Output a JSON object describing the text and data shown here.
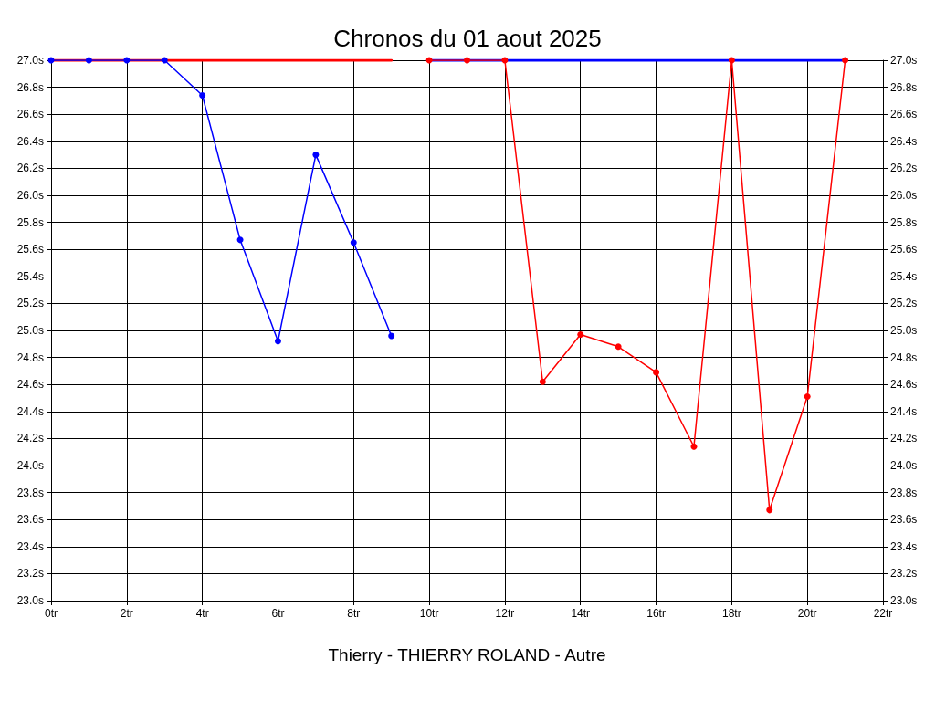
{
  "chart_data": {
    "type": "line",
    "title": "Chronos du 01 aout 2025",
    "xlabel": "Thierry - THIERRY ROLAND - Autre",
    "series": [
      {
        "x": [
          0,
          9
        ],
        "values": [
          27.0,
          27.0
        ],
        "color": "#ff0000",
        "marker": "none"
      },
      {
        "x": [
          0,
          1,
          2,
          3,
          4,
          5,
          6,
          7,
          8,
          9
        ],
        "values": [
          27.0,
          27.0,
          27.0,
          27.0,
          26.74,
          25.67,
          24.92,
          26.3,
          25.65,
          24.96
        ],
        "color": "#0000ff"
      },
      {
        "x": [
          10,
          21
        ],
        "values": [
          27.0,
          27.0
        ],
        "color": "#0000ff",
        "marker": "none"
      },
      {
        "x": [
          10,
          11,
          12,
          13,
          14,
          15,
          16,
          17,
          18,
          19,
          20,
          21
        ],
        "values": [
          27.0,
          27.0,
          27.0,
          24.62,
          24.97,
          24.88,
          24.69,
          24.14,
          27.0,
          23.67,
          24.51,
          27.0
        ],
        "color": "#ff0000"
      }
    ],
    "marker": "circle",
    "grid": true,
    "xlim": [
      0,
      22
    ],
    "xticks": [
      {
        "value": 0,
        "label": "0tr"
      },
      {
        "value": 2,
        "label": "2tr"
      },
      {
        "value": 4,
        "label": "4tr"
      },
      {
        "value": 6,
        "label": "6tr"
      },
      {
        "value": 8,
        "label": "8tr"
      },
      {
        "value": 10,
        "label": "10tr"
      },
      {
        "value": 12,
        "label": "12tr"
      },
      {
        "value": 14,
        "label": "14tr"
      },
      {
        "value": 16,
        "label": "16tr"
      },
      {
        "value": 18,
        "label": "18tr"
      },
      {
        "value": 20,
        "label": "20tr"
      },
      {
        "value": 22,
        "label": "22tr"
      }
    ],
    "ylim": [
      23.0,
      27.0
    ],
    "yticks": [
      {
        "value": 23.0,
        "label": "23.0s"
      },
      {
        "value": 23.2,
        "label": "23.2s"
      },
      {
        "value": 23.4,
        "label": "23.4s"
      },
      {
        "value": 23.6,
        "label": "23.6s"
      },
      {
        "value": 23.8,
        "label": "23.8s"
      },
      {
        "value": 24.0,
        "label": "24.0s"
      },
      {
        "value": 24.2,
        "label": "24.2s"
      },
      {
        "value": 24.4,
        "label": "24.4s"
      },
      {
        "value": 24.6,
        "label": "24.6s"
      },
      {
        "value": 24.8,
        "label": "24.8s"
      },
      {
        "value": 25.0,
        "label": "25.0s"
      },
      {
        "value": 25.2,
        "label": "25.2s"
      },
      {
        "value": 25.4,
        "label": "25.4s"
      },
      {
        "value": 25.6,
        "label": "25.6s"
      },
      {
        "value": 25.8,
        "label": "25.8s"
      },
      {
        "value": 26.0,
        "label": "26.0s"
      },
      {
        "value": 26.2,
        "label": "26.2s"
      },
      {
        "value": 26.4,
        "label": "26.4s"
      },
      {
        "value": 26.6,
        "label": "26.6s"
      },
      {
        "value": 26.8,
        "label": "26.8s"
      },
      {
        "value": 27.0,
        "label": "27.0s"
      }
    ],
    "y2lim": [
      23.0,
      27.0
    ],
    "y2ticks": [
      {
        "value": 23.0,
        "label": "23.0s"
      },
      {
        "value": 23.2,
        "label": "23.2s"
      },
      {
        "value": 23.4,
        "label": "23.4s"
      },
      {
        "value": 23.6,
        "label": "23.6s"
      },
      {
        "value": 23.8,
        "label": "23.8s"
      },
      {
        "value": 24.0,
        "label": "24.0s"
      },
      {
        "value": 24.2,
        "label": "24.2s"
      },
      {
        "value": 24.4,
        "label": "24.4s"
      },
      {
        "value": 24.6,
        "label": "24.6s"
      },
      {
        "value": 24.8,
        "label": "24.8s"
      },
      {
        "value": 25.0,
        "label": "25.0s"
      },
      {
        "value": 25.2,
        "label": "25.2s"
      },
      {
        "value": 25.4,
        "label": "25.4s"
      },
      {
        "value": 25.6,
        "label": "25.6s"
      },
      {
        "value": 25.8,
        "label": "25.8s"
      },
      {
        "value": 26.0,
        "label": "26.0s"
      },
      {
        "value": 26.2,
        "label": "26.2s"
      },
      {
        "value": 26.4,
        "label": "26.4s"
      },
      {
        "value": 26.6,
        "label": "26.6s"
      },
      {
        "value": 26.8,
        "label": "26.8s"
      },
      {
        "value": 27.0,
        "label": "27.0s"
      }
    ]
  }
}
